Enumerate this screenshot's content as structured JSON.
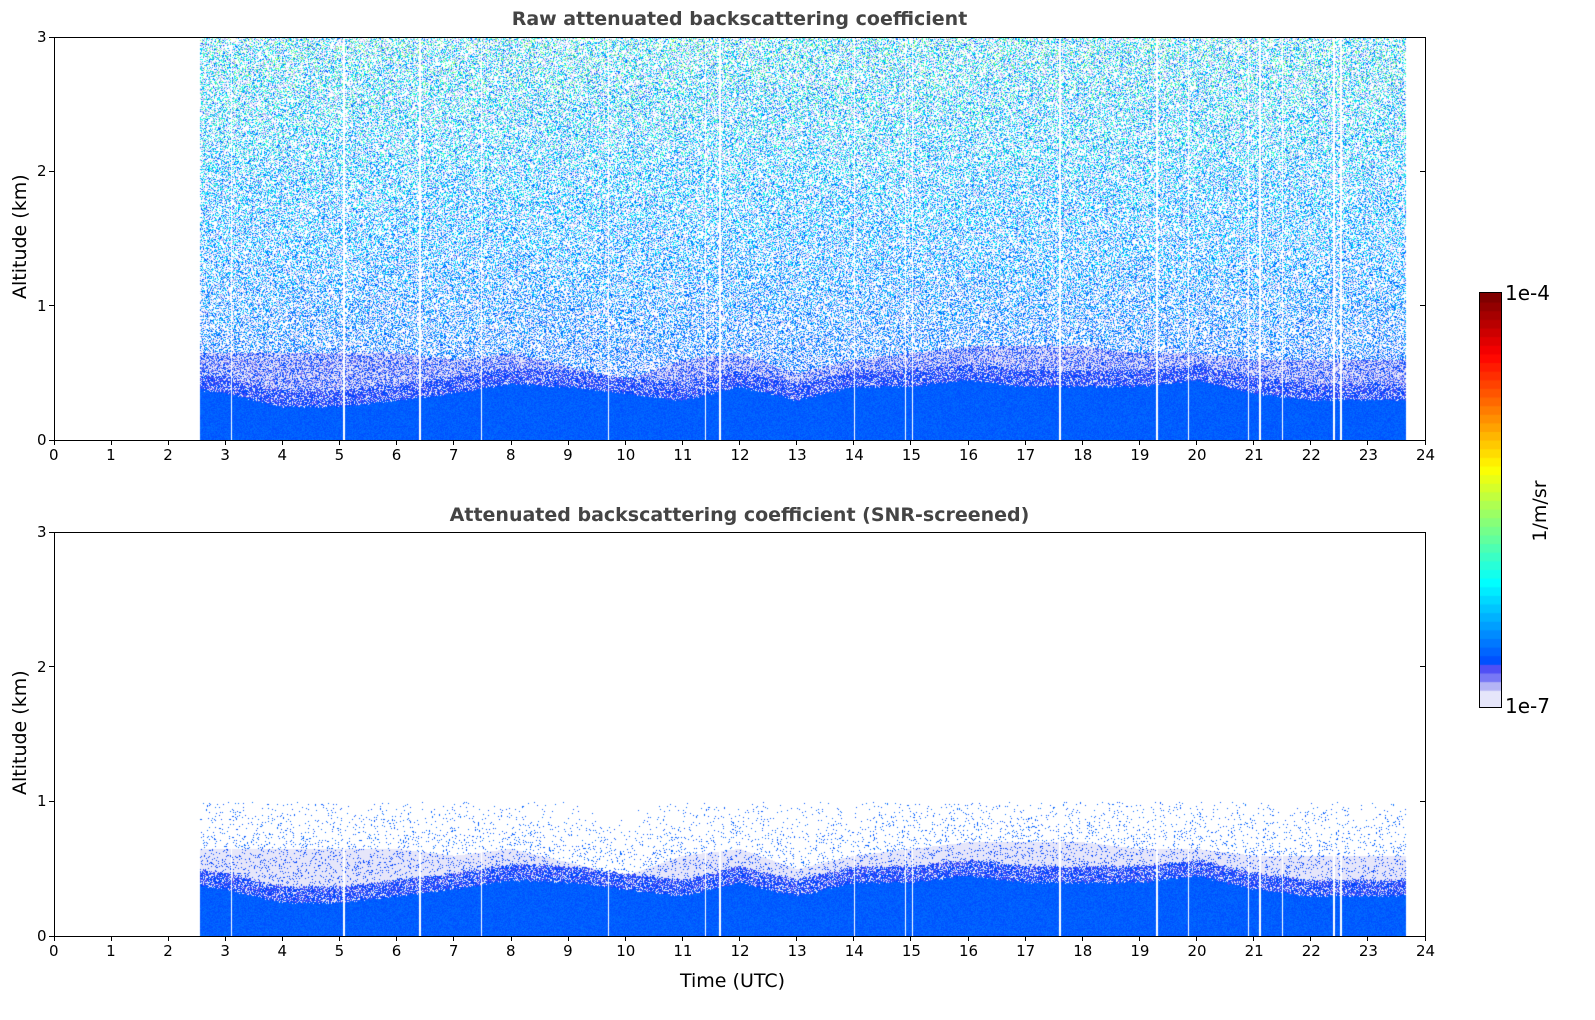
{
  "chart_data": [
    {
      "type": "heatmap",
      "title": "Raw attenuated backscattering coefficient",
      "xlabel": "",
      "ylabel": "Altitude (km)",
      "xlim": [
        0,
        24
      ],
      "ylim": [
        0,
        3
      ],
      "xticks": [
        "0",
        "1",
        "2",
        "3",
        "4",
        "5",
        "6",
        "7",
        "8",
        "9",
        "10",
        "11",
        "12",
        "13",
        "14",
        "15",
        "16",
        "17",
        "18",
        "19",
        "20",
        "21",
        "22",
        "23",
        "24"
      ],
      "yticks": [
        "0",
        "1",
        "2",
        "3"
      ],
      "data_time_range_utc": [
        2.55,
        23.65
      ],
      "screening": "none (noisy signal up to 3 km)"
    },
    {
      "type": "heatmap",
      "title": "Attenuated backscattering coefficient (SNR-screened)",
      "xlabel": "Time (UTC)",
      "ylabel": "Altitude (km)",
      "xlim": [
        0,
        24
      ],
      "ylim": [
        0,
        3
      ],
      "xticks": [
        "0",
        "1",
        "2",
        "3",
        "4",
        "5",
        "6",
        "7",
        "8",
        "9",
        "10",
        "11",
        "12",
        "13",
        "14",
        "15",
        "16",
        "17",
        "18",
        "19",
        "20",
        "21",
        "22",
        "23",
        "24"
      ],
      "yticks": [
        "0",
        "1",
        "2",
        "3"
      ],
      "data_time_range_utc": [
        2.55,
        23.65
      ],
      "screening": "SNR threshold, signal retained below ~1.1 km"
    }
  ],
  "profile_summary": {
    "hours": [
      2.5,
      3,
      4,
      5,
      6,
      7,
      8,
      9,
      10,
      11,
      12,
      13,
      14,
      15,
      16,
      17,
      18,
      19,
      20,
      21,
      22,
      23,
      23.65
    ],
    "dense_layer_top_km": [
      0.38,
      0.35,
      0.25,
      0.25,
      0.3,
      0.35,
      0.42,
      0.4,
      0.35,
      0.3,
      0.4,
      0.3,
      0.4,
      0.4,
      0.45,
      0.4,
      0.4,
      0.4,
      0.45,
      0.35,
      0.3,
      0.3,
      0.3
    ],
    "aerosol_layer_top_km": [
      0.65,
      0.65,
      0.65,
      0.65,
      0.65,
      0.6,
      0.65,
      0.55,
      0.45,
      0.6,
      0.65,
      0.5,
      0.6,
      0.65,
      0.7,
      0.7,
      0.7,
      0.65,
      0.65,
      0.6,
      0.6,
      0.6,
      0.6
    ],
    "data_gaps_utc": [
      3.1,
      5.07,
      6.4,
      7.47,
      9.7,
      11.4,
      11.65,
      14.0,
      14.9,
      15.02,
      17.6,
      19.3,
      19.85,
      20.9,
      21.1,
      21.5,
      22.4,
      22.52
    ]
  },
  "colorbar": {
    "label": "1/m/sr",
    "min_label": "1e-7",
    "max_label": "1e-4",
    "scale": "log",
    "colormap": "jet (lowest bins lavender/white)"
  }
}
